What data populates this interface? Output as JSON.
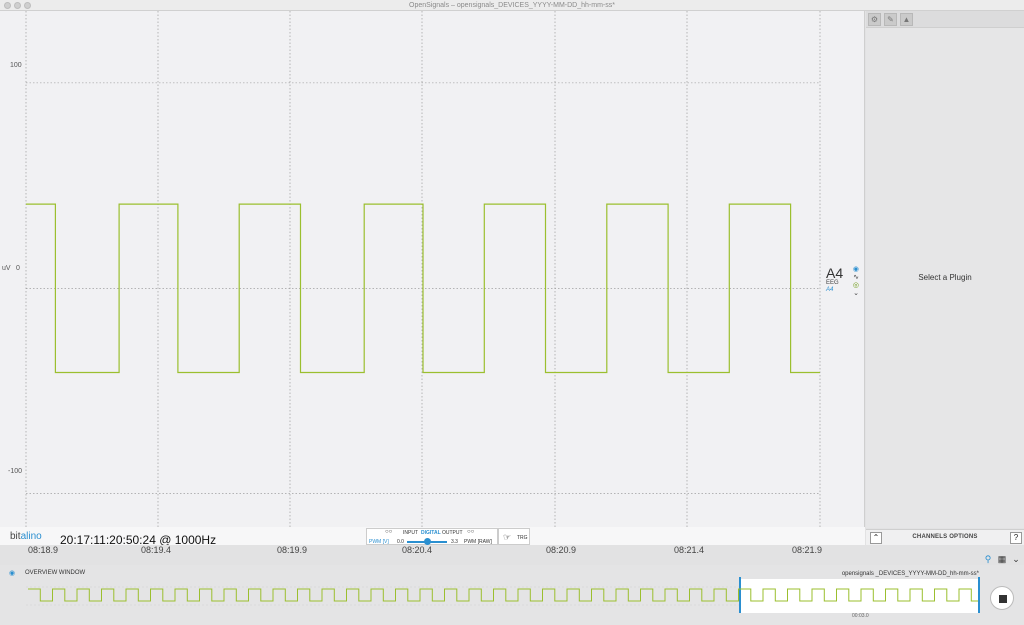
{
  "window": {
    "title": "OpenSignals – opensignals_DEVICES_YYYY-MM-DD_hh-mm-ss*"
  },
  "plot": {
    "y_ticks": [
      "100",
      "0",
      "-100"
    ],
    "y_unit": "uV",
    "signal_color": "#9bbf2e",
    "channel": {
      "name": "A4",
      "type": "EEG",
      "label": "A4"
    }
  },
  "chart_data": {
    "type": "line",
    "ylim": [
      -125,
      135
    ],
    "y_unit": "uV",
    "x_ticks": [
      "08:18.9",
      "08:19.4",
      "08:19.9",
      "08:20.4",
      "08:20.9",
      "08:21.4",
      "08:21.9"
    ],
    "series": [
      {
        "values": [
          [
            8.9,
            41
          ],
          [
            9.02,
            41
          ],
          [
            9.02,
            -41
          ],
          [
            9.28,
            -41
          ],
          [
            9.28,
            41
          ],
          [
            9.52,
            41
          ],
          [
            9.52,
            -41
          ],
          [
            9.77,
            -41
          ],
          [
            9.77,
            41
          ],
          [
            10.02,
            41
          ],
          [
            10.02,
            -41
          ],
          [
            10.28,
            -41
          ],
          [
            10.28,
            41
          ],
          [
            10.52,
            41
          ],
          [
            10.52,
            -41
          ],
          [
            10.77,
            -41
          ],
          [
            10.77,
            41
          ],
          [
            11.02,
            41
          ],
          [
            11.02,
            -41
          ],
          [
            11.27,
            -41
          ],
          [
            11.27,
            41
          ],
          [
            11.52,
            41
          ],
          [
            11.52,
            -41
          ],
          [
            11.77,
            -41
          ],
          [
            11.77,
            41
          ],
          [
            12.02,
            41
          ],
          [
            12.02,
            -41
          ],
          [
            12.14,
            -41
          ]
        ]
      }
    ]
  },
  "right_panel": {
    "placeholder": "Select a Plugin",
    "channels_options": "CHANNELS OPTIONS",
    "help": "?"
  },
  "bottom_bar": {
    "logo_a": "bit",
    "logo_b": "alino",
    "timestamp": "20:17:11:20:50:24 @ 1000Hz",
    "io": {
      "input": "INPUT",
      "digital": "DIGITAL",
      "output": "OUTPUT",
      "pwm_v": "PWM [V]",
      "min": "0.0",
      "max": "3.3",
      "pwm_raw": "PWM [RAW]",
      "trg": "TRG"
    }
  },
  "overview": {
    "label": "OVERVIEW WINDOW",
    "file": "opensignals _DEVICES_YYYY-MM-DD_hh-mm-ss*",
    "time": "00:03.0"
  }
}
